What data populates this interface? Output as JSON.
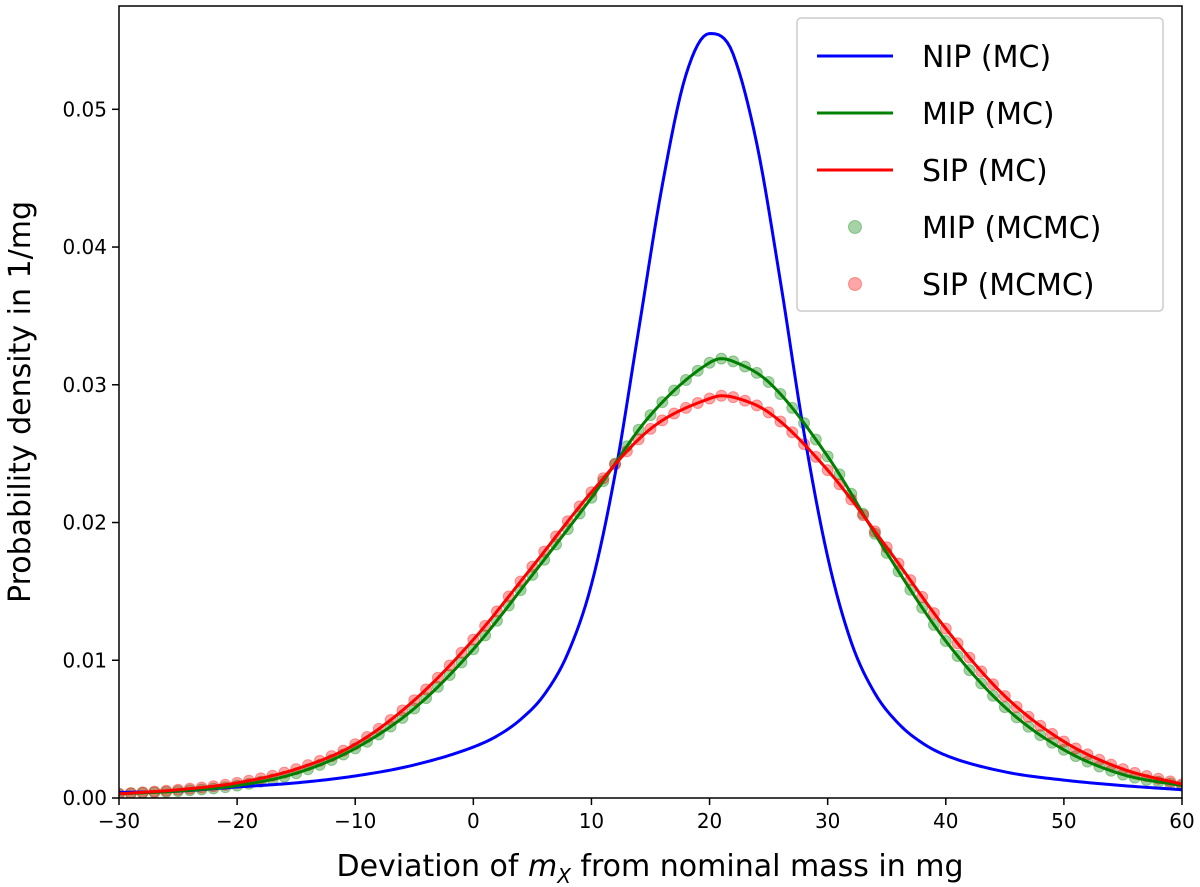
{
  "chart_data": {
    "type": "line",
    "title": "",
    "xlabel": {
      "prefix": "Deviation of ",
      "var": "m",
      "sub": "X",
      "suffix": " from nominal mass in mg"
    },
    "ylabel": "Probability density in 1/mg",
    "xlim": [
      -30,
      60
    ],
    "ylim": [
      0,
      0.0575
    ],
    "xticks": [
      -30,
      -20,
      -10,
      0,
      10,
      20,
      30,
      40,
      50,
      60
    ],
    "yticks": [
      0,
      0.01,
      0.02,
      0.03,
      0.04,
      0.05
    ],
    "ytick_labels": [
      "0.00",
      "0.01",
      "0.02",
      "0.03",
      "0.04",
      "0.05"
    ],
    "grid": false,
    "legend_position": "top-right",
    "series": [
      {
        "name": "NIP (MC)",
        "kind": "line",
        "color": "#0000ff",
        "points": [
          [
            -30,
            0.0004
          ],
          [
            -25,
            0.0005
          ],
          [
            -20,
            0.0008
          ],
          [
            -15,
            0.0011
          ],
          [
            -10,
            0.0016
          ],
          [
            -5,
            0.0024
          ],
          [
            0,
            0.0037
          ],
          [
            2,
            0.0045
          ],
          [
            4,
            0.0057
          ],
          [
            6,
            0.0075
          ],
          [
            8,
            0.0105
          ],
          [
            10,
            0.0155
          ],
          [
            12,
            0.0235
          ],
          [
            14,
            0.034
          ],
          [
            16,
            0.0445
          ],
          [
            18,
            0.0525
          ],
          [
            20,
            0.0555
          ],
          [
            21,
            0.0553
          ],
          [
            22,
            0.054
          ],
          [
            24,
            0.0475
          ],
          [
            26,
            0.0375
          ],
          [
            28,
            0.0265
          ],
          [
            30,
            0.0175
          ],
          [
            32,
            0.0113
          ],
          [
            34,
            0.0076
          ],
          [
            36,
            0.0054
          ],
          [
            38,
            0.004
          ],
          [
            40,
            0.0031
          ],
          [
            45,
            0.0019
          ],
          [
            50,
            0.0013
          ],
          [
            55,
            0.0009
          ],
          [
            60,
            0.0006
          ]
        ]
      },
      {
        "name": "MIP (MC)",
        "kind": "line",
        "color": "#008000",
        "points": [
          [
            -30,
            0.0003
          ],
          [
            -25,
            0.0005
          ],
          [
            -20,
            0.0009
          ],
          [
            -15,
            0.0018
          ],
          [
            -10,
            0.0036
          ],
          [
            -5,
            0.0065
          ],
          [
            0,
            0.0108
          ],
          [
            5,
            0.0162
          ],
          [
            10,
            0.0218
          ],
          [
            15,
            0.0278
          ],
          [
            20,
            0.0316
          ],
          [
            21,
            0.0319
          ],
          [
            22,
            0.0317
          ],
          [
            25,
            0.0302
          ],
          [
            30,
            0.0248
          ],
          [
            35,
            0.0178
          ],
          [
            40,
            0.0114
          ],
          [
            45,
            0.0066
          ],
          [
            50,
            0.0035
          ],
          [
            55,
            0.0017
          ],
          [
            60,
            0.0009
          ]
        ]
      },
      {
        "name": "SIP (MC)",
        "kind": "line",
        "color": "#ff0000",
        "points": [
          [
            -30,
            0.0003
          ],
          [
            -25,
            0.0006
          ],
          [
            -20,
            0.0011
          ],
          [
            -15,
            0.0021
          ],
          [
            -10,
            0.0039
          ],
          [
            -5,
            0.0071
          ],
          [
            0,
            0.0115
          ],
          [
            5,
            0.0168
          ],
          [
            10,
            0.0222
          ],
          [
            15,
            0.0268
          ],
          [
            20,
            0.029
          ],
          [
            21,
            0.0292
          ],
          [
            22,
            0.0291
          ],
          [
            25,
            0.028
          ],
          [
            30,
            0.0238
          ],
          [
            35,
            0.0182
          ],
          [
            40,
            0.0123
          ],
          [
            45,
            0.0074
          ],
          [
            50,
            0.0041
          ],
          [
            55,
            0.0021
          ],
          [
            60,
            0.001
          ]
        ]
      },
      {
        "name": "MIP (MCMC)",
        "kind": "markers",
        "color": "#008000",
        "ref": "MIP (MC)",
        "x_start": -30,
        "x_end": 60,
        "x_step": 1
      },
      {
        "name": "SIP (MCMC)",
        "kind": "markers",
        "color": "#ff0000",
        "ref": "SIP (MC)",
        "x_start": -30,
        "x_end": 60,
        "x_step": 1
      }
    ]
  }
}
